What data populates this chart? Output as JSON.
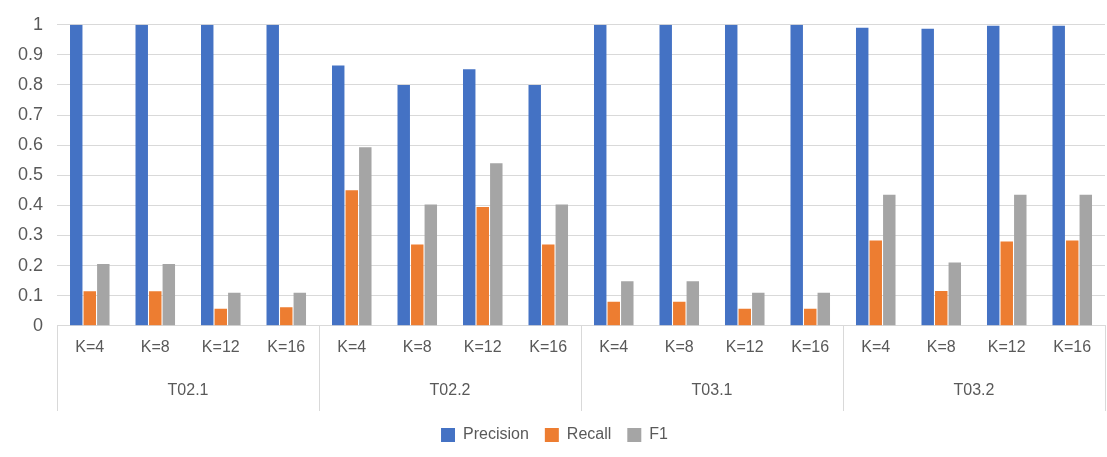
{
  "chart_data": {
    "type": "bar",
    "categories": [
      "K=4",
      "K=8",
      "K=12",
      "K=16",
      "K=4",
      "K=8",
      "K=12",
      "K=16",
      "K=4",
      "K=8",
      "K=12",
      "K=16",
      "K=4",
      "K=8",
      "K=12",
      "K=16"
    ],
    "series": [
      {
        "name": "Precision",
        "color": "#4472c4",
        "values": [
          1,
          1,
          1,
          1,
          0.865,
          0.8,
          0.852,
          0.8,
          1,
          1,
          1,
          1,
          0.99,
          0.987,
          0.997,
          0.997
        ]
      },
      {
        "name": "Recall",
        "color": "#ed7d31",
        "values": [
          0.115,
          0.115,
          0.057,
          0.062,
          0.45,
          0.27,
          0.395,
          0.27,
          0.08,
          0.08,
          0.057,
          0.057,
          0.283,
          0.116,
          0.28,
          0.283
        ]
      },
      {
        "name": "F1",
        "color": "#a5a5a5",
        "values": [
          0.205,
          0.205,
          0.11,
          0.11,
          0.593,
          0.403,
          0.54,
          0.403,
          0.148,
          0.148,
          0.11,
          0.11,
          0.435,
          0.21,
          0.435,
          0.435
        ]
      }
    ],
    "annotations": [
      "T02.1",
      "T02.2",
      "T03.1",
      "T03.2"
    ],
    "ylim": [
      0,
      1
    ],
    "yticks": [
      0,
      0.1,
      0.2,
      0.3,
      0.4,
      0.5,
      0.6,
      0.7,
      0.8,
      0.9,
      1
    ],
    "grid": "y",
    "legend": "bottom"
  }
}
